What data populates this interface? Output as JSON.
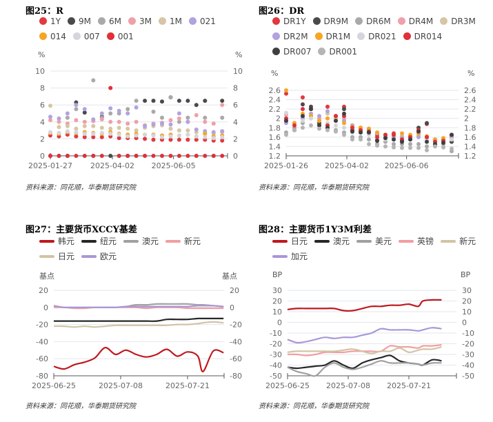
{
  "source": "资料来源：同花顺，华泰期货研究院",
  "chart_data": [
    {
      "id": "c1",
      "type": "scatter",
      "title": "图25：R",
      "unit_left": "%",
      "unit_right": "%",
      "ylim": [
        0,
        10
      ],
      "yticks": [
        "0",
        "2",
        "4",
        "6",
        "8",
        "10"
      ],
      "xticks": [
        "2025-01-27",
        "2025-04-02",
        "2025-06-05"
      ],
      "grid": true,
      "legend": "top",
      "x": [
        "2025-01-27",
        "2025-02-05",
        "2025-02-14",
        "2025-02-23",
        "2025-03-04",
        "2025-03-13",
        "2025-03-22",
        "2025-03-31",
        "2025-04-09",
        "2025-04-18",
        "2025-04-27",
        "2025-05-06",
        "2025-05-15",
        "2025-05-24",
        "2025-06-02",
        "2025-06-11",
        "2025-06-20",
        "2025-06-29",
        "2025-07-08",
        "2025-07-17",
        "2025-07-26"
      ],
      "series": [
        {
          "name": "1Y",
          "color": "#e03a3e",
          "values": [
            2.4,
            2.3,
            2.5,
            2.3,
            2.2,
            2.2,
            2.2,
            2.3,
            2.1,
            2.1,
            2.1,
            2.0,
            1.9,
            1.9,
            1.9,
            1.9,
            1.9,
            1.9,
            1.9,
            1.8,
            1.8
          ]
        },
        {
          "name": "9M",
          "color": "#4a4a4a",
          "values": [
            0,
            0,
            0,
            6.3,
            5.1,
            0,
            4.6,
            0,
            0,
            0,
            0,
            6.5,
            6.5,
            6.4,
            6.9,
            6.5,
            6.5,
            6.0,
            6.5,
            0,
            6.5
          ]
        },
        {
          "name": "6M",
          "color": "#a9a9a9",
          "values": [
            0,
            0,
            4.5,
            5.5,
            0,
            8.9,
            4.5,
            5.0,
            5.0,
            5.5,
            6.5,
            0,
            5.2,
            4.5,
            6.9,
            4.0,
            4.5,
            0,
            4.5,
            0,
            4.5
          ]
        },
        {
          "name": "3M",
          "color": "#f0a0a8",
          "values": [
            4.2,
            4.0,
            3.8,
            4.2,
            4.0,
            4.1,
            4.3,
            4.0,
            4.0,
            3.8,
            4.0,
            3.6,
            3.8,
            3.9,
            4.2,
            4.4,
            4.0,
            4.8,
            4.0,
            3.8,
            6.0
          ]
        },
        {
          "name": "1M",
          "color": "#d6c6a6",
          "values": [
            5.9,
            3.4,
            3.5,
            3.2,
            3.5,
            3.5,
            3.3,
            3.2,
            3.3,
            3.2,
            3.0,
            3.3,
            3.5,
            3.6,
            3.2,
            3.0,
            3.0,
            2.8,
            2.7,
            2.6,
            2.8
          ]
        },
        {
          "name": "021",
          "color": "#b3a2e0",
          "values": [
            4.6,
            4.4,
            5.0,
            6.0,
            5.5,
            4.3,
            5.0,
            5.6,
            5.3,
            5.0,
            5.7,
            3.5,
            3.7,
            3.8,
            3.7,
            5.0,
            4.0,
            3.1,
            2.9,
            2.8,
            2.9
          ]
        },
        {
          "name": "014",
          "color": "#f5a623",
          "values": [
            2.7,
            2.6,
            2.8,
            2.7,
            2.8,
            2.7,
            2.6,
            2.8,
            2.6,
            2.5,
            2.6,
            2.5,
            2.5,
            2.4,
            2.5,
            2.4,
            2.5,
            2.3,
            2.6,
            2.3,
            2.4
          ]
        },
        {
          "name": "007",
          "color": "#d4d6dc",
          "values": [
            2.8,
            2.7,
            2.9,
            2.8,
            2.6,
            2.6,
            2.7,
            2.6,
            2.5,
            2.3,
            2.4,
            2.5,
            2.4,
            2.2,
            2.3,
            2.4,
            2.5,
            2.3,
            2.2,
            2.1,
            2.2
          ]
        },
        {
          "name": "001",
          "color": "#e0303a",
          "values": [
            0,
            0,
            0,
            0,
            0,
            0,
            0,
            8.0,
            0,
            0,
            0,
            0,
            0,
            0,
            0,
            0,
            0,
            0,
            0,
            0,
            0
          ]
        }
      ]
    },
    {
      "id": "c2",
      "type": "scatter",
      "title": "图26：DR",
      "unit_left": "%",
      "unit_right": "%",
      "ylim": [
        1.2,
        2.6
      ],
      "yticks": [
        "1.2",
        "1.4",
        "1.6",
        "1.8",
        "2",
        "2.2",
        "2.4",
        "2.6"
      ],
      "xticks": [
        "2025-01-26",
        "2025-04-02",
        "2025-06-06"
      ],
      "grid": true,
      "legend": "top",
      "x": [
        "2025-01-26",
        "2025-02-04",
        "2025-02-13",
        "2025-02-22",
        "2025-03-03",
        "2025-03-12",
        "2025-03-21",
        "2025-03-30",
        "2025-04-08",
        "2025-04-17",
        "2025-04-26",
        "2025-05-05",
        "2025-05-14",
        "2025-05-23",
        "2025-06-01",
        "2025-06-10",
        "2025-06-19",
        "2025-06-28",
        "2025-07-07",
        "2025-07-16",
        "2025-07-25"
      ],
      "series": [
        {
          "name": "DR1Y",
          "color": "#e03a3e",
          "values": [
            2.53,
            1.9,
            2.45,
            2.2,
            1.9,
            2.25,
            2.05,
            2.25,
            1.85,
            1.8,
            1.75,
            1.65,
            1.65,
            1.68,
            1.6,
            1.62,
            1.7,
            1.88,
            1.52,
            1.55,
            1.62
          ]
        },
        {
          "name": "DR9M",
          "color": "#4a4a4a",
          "values": [
            1.95,
            1.85,
            2.3,
            2.25,
            1.9,
            1.85,
            2.0,
            2.2,
            1.75,
            1.72,
            1.7,
            1.55,
            1.6,
            1.55,
            1.52,
            1.55,
            1.8,
            1.9,
            1.45,
            1.5,
            1.5
          ]
        },
        {
          "name": "DR6M",
          "color": "#a9a9a9",
          "values": [
            1.7,
            1.8,
            1.9,
            2.05,
            1.85,
            1.8,
            1.75,
            1.7,
            1.6,
            1.6,
            1.55,
            1.45,
            1.5,
            1.45,
            1.45,
            1.45,
            1.45,
            1.4,
            1.42,
            1.45,
            1.3
          ]
        },
        {
          "name": "DR4M",
          "color": "#f0a0a8",
          "values": [
            2.08,
            1.9,
            2.05,
            2.1,
            2.0,
            2.15,
            2.05,
            2.0,
            1.85,
            1.8,
            1.78,
            1.7,
            1.65,
            1.65,
            1.62,
            1.6,
            1.65,
            1.6,
            1.55,
            1.55,
            1.6
          ]
        },
        {
          "name": "DR3M",
          "color": "#d6c6a6",
          "values": [
            1.95,
            1.85,
            2.0,
            2.0,
            1.95,
            2.1,
            2.0,
            1.95,
            1.82,
            1.78,
            1.75,
            1.68,
            1.62,
            1.62,
            1.6,
            1.6,
            1.62,
            1.58,
            1.52,
            1.55,
            1.58
          ]
        },
        {
          "name": "DR2M",
          "color": "#b3a2e0",
          "values": [
            1.9,
            1.85,
            2.0,
            2.1,
            2.05,
            2.15,
            2.05,
            1.95,
            1.85,
            1.8,
            1.75,
            1.68,
            1.65,
            1.6,
            1.58,
            1.6,
            1.6,
            1.55,
            1.52,
            1.55,
            1.6
          ]
        },
        {
          "name": "DR1M",
          "color": "#f5a623",
          "values": [
            2.6,
            1.9,
            2.1,
            2.05,
            1.95,
            2.0,
            1.95,
            1.9,
            1.82,
            1.8,
            1.78,
            1.7,
            1.65,
            1.65,
            1.68,
            1.65,
            1.68,
            1.62,
            1.55,
            1.58,
            1.55
          ]
        },
        {
          "name": "DR021",
          "color": "#d4d6dc",
          "values": [
            2.12,
            1.85,
            1.95,
            2.0,
            1.85,
            1.9,
            1.85,
            1.8,
            1.7,
            1.7,
            1.65,
            1.58,
            1.55,
            1.55,
            1.55,
            1.58,
            1.72,
            1.55,
            1.5,
            1.5,
            1.55
          ]
        },
        {
          "name": "DR014",
          "color": "#e0303a",
          "values": [
            2.0,
            1.85,
            2.2,
            2.2,
            1.85,
            1.85,
            2.05,
            2.05,
            1.8,
            1.75,
            1.72,
            1.6,
            1.65,
            1.65,
            1.55,
            1.6,
            1.75,
            1.6,
            1.5,
            1.52,
            1.65
          ]
        },
        {
          "name": "DR007",
          "color": "#3f3f3f",
          "values": [
            1.95,
            1.75,
            2.05,
            2.2,
            1.85,
            1.8,
            1.95,
            2.1,
            1.72,
            1.7,
            1.7,
            1.52,
            1.58,
            1.55,
            1.5,
            1.55,
            1.72,
            1.5,
            1.45,
            1.48,
            1.65
          ]
        },
        {
          "name": "DR001",
          "color": "#b5b5b5",
          "values": [
            1.65,
            1.75,
            1.8,
            1.85,
            1.78,
            1.75,
            1.72,
            1.65,
            1.55,
            1.55,
            1.45,
            1.42,
            1.4,
            1.38,
            1.37,
            1.37,
            1.37,
            1.32,
            1.4,
            1.38,
            1.35
          ]
        }
      ]
    },
    {
      "id": "c3",
      "type": "line",
      "title": "图27：主要货币XCCY基差",
      "unit_left": "基点",
      "unit_right": "基点",
      "ylim": [
        -80,
        20
      ],
      "yticks": [
        "-80",
        "-60",
        "-40",
        "-20",
        "0",
        "20"
      ],
      "xticks": [
        "2025-06-25",
        "2025-07-08",
        "2025-07-21"
      ],
      "grid": true,
      "legend": "top",
      "x": [
        "2025-06-25",
        "2025-06-27",
        "2025-06-29",
        "2025-07-01",
        "2025-07-03",
        "2025-07-05",
        "2025-07-07",
        "2025-07-09",
        "2025-07-11",
        "2025-07-13",
        "2025-07-15",
        "2025-07-17",
        "2025-07-19",
        "2025-07-21",
        "2025-07-23",
        "2025-07-24",
        "2025-07-26",
        "2025-07-28"
      ],
      "series": [
        {
          "name": "韩元",
          "color": "#c0171e",
          "values": [
            -69,
            -72,
            -67,
            -64,
            -59,
            -47,
            -55,
            -50,
            -55,
            -58,
            -55,
            -49,
            -57,
            -52,
            -57,
            -75,
            -51,
            -53
          ]
        },
        {
          "name": "纽元",
          "color": "#262626",
          "values": [
            -16,
            -16,
            -16,
            -16,
            -16,
            -16,
            -16,
            -16,
            -16,
            -16,
            -16,
            -14,
            -14,
            -14,
            -13,
            -13,
            -13,
            -13
          ]
        },
        {
          "name": "澳元",
          "color": "#a0a0a0",
          "values": [
            1,
            0,
            0,
            0,
            0,
            0,
            0,
            1,
            3,
            3,
            4,
            4,
            4,
            4,
            3,
            3,
            2,
            1
          ]
        },
        {
          "name": "新元",
          "color": "#f19ea0",
          "values": [
            0,
            0,
            -1,
            -1,
            0,
            0,
            0,
            0,
            0,
            -1,
            0,
            0,
            0,
            -1,
            -1,
            -1,
            -1,
            -1
          ]
        },
        {
          "name": "日元",
          "color": "#d2c3a4",
          "values": [
            -22,
            -22,
            -23,
            -22,
            -23,
            -22,
            -21,
            -21,
            -21,
            -21,
            -21,
            -21,
            -20,
            -20,
            -19,
            -18,
            -17,
            -18
          ]
        },
        {
          "name": "欧元",
          "color": "#a897d8",
          "values": [
            2,
            0,
            0,
            0,
            0,
            0,
            0,
            1,
            1,
            1,
            1,
            1,
            1,
            1,
            2,
            2,
            2,
            1
          ]
        }
      ]
    },
    {
      "id": "c4",
      "type": "line",
      "title": "图28：主要货币1Y3M利差",
      "unit_left": "BP",
      "unit_right": "BP",
      "ylim": [
        -50,
        30
      ],
      "yticks": [
        "-50",
        "-40",
        "-30",
        "-20",
        "-10",
        "0",
        "10",
        "20",
        "30"
      ],
      "xticks": [
        "2025-06-25",
        "2025-07-08",
        "2025-07-21"
      ],
      "grid": true,
      "legend": "top",
      "x": [
        "2025-06-25",
        "2025-06-27",
        "2025-06-29",
        "2025-07-01",
        "2025-07-03",
        "2025-07-05",
        "2025-07-07",
        "2025-07-09",
        "2025-07-11",
        "2025-07-13",
        "2025-07-15",
        "2025-07-17",
        "2025-07-19",
        "2025-07-21",
        "2025-07-23",
        "2025-07-24",
        "2025-07-26",
        "2025-07-28"
      ],
      "series": [
        {
          "name": "日元",
          "color": "#c0171e",
          "values": [
            12,
            13,
            13,
            13,
            13,
            13,
            11,
            11,
            13,
            15,
            15,
            16,
            16,
            17,
            15,
            20,
            21,
            21
          ]
        },
        {
          "name": "澳元",
          "color": "#262626",
          "values": [
            -42,
            -43,
            -42,
            -41,
            -40,
            -36,
            -40,
            -43,
            -38,
            -35,
            -33,
            -31,
            -36,
            -38,
            -39,
            -40,
            -35,
            -36
          ]
        },
        {
          "name": "美元",
          "color": "#a0a0a0",
          "values": [
            -42,
            -46,
            -48,
            -50,
            -42,
            -38,
            -42,
            -44,
            -42,
            -39,
            -36,
            -38,
            -38,
            -38,
            -39,
            -40,
            -38,
            -38
          ]
        },
        {
          "name": "英镑",
          "color": "#f19ea0",
          "values": [
            -30,
            -30,
            -31,
            -30,
            -28,
            -28,
            -28,
            -27,
            -27,
            -27,
            -27,
            -22,
            -23,
            -23,
            -24,
            -22,
            -22,
            -21
          ]
        },
        {
          "name": "新元",
          "color": "#d2c3a4",
          "values": [
            -28,
            -27,
            -27,
            -27,
            -27,
            -27,
            -26,
            -25,
            -27,
            -29,
            -27,
            -27,
            -24,
            -28,
            -26,
            -25,
            -25,
            -23
          ]
        },
        {
          "name": "加元",
          "color": "#a897d8",
          "values": [
            -16,
            -19,
            -18,
            -16,
            -14,
            -15,
            -14,
            -14,
            -12,
            -10,
            -6,
            -7,
            -7,
            -7,
            -8,
            -7,
            -5,
            -6
          ]
        }
      ]
    }
  ]
}
